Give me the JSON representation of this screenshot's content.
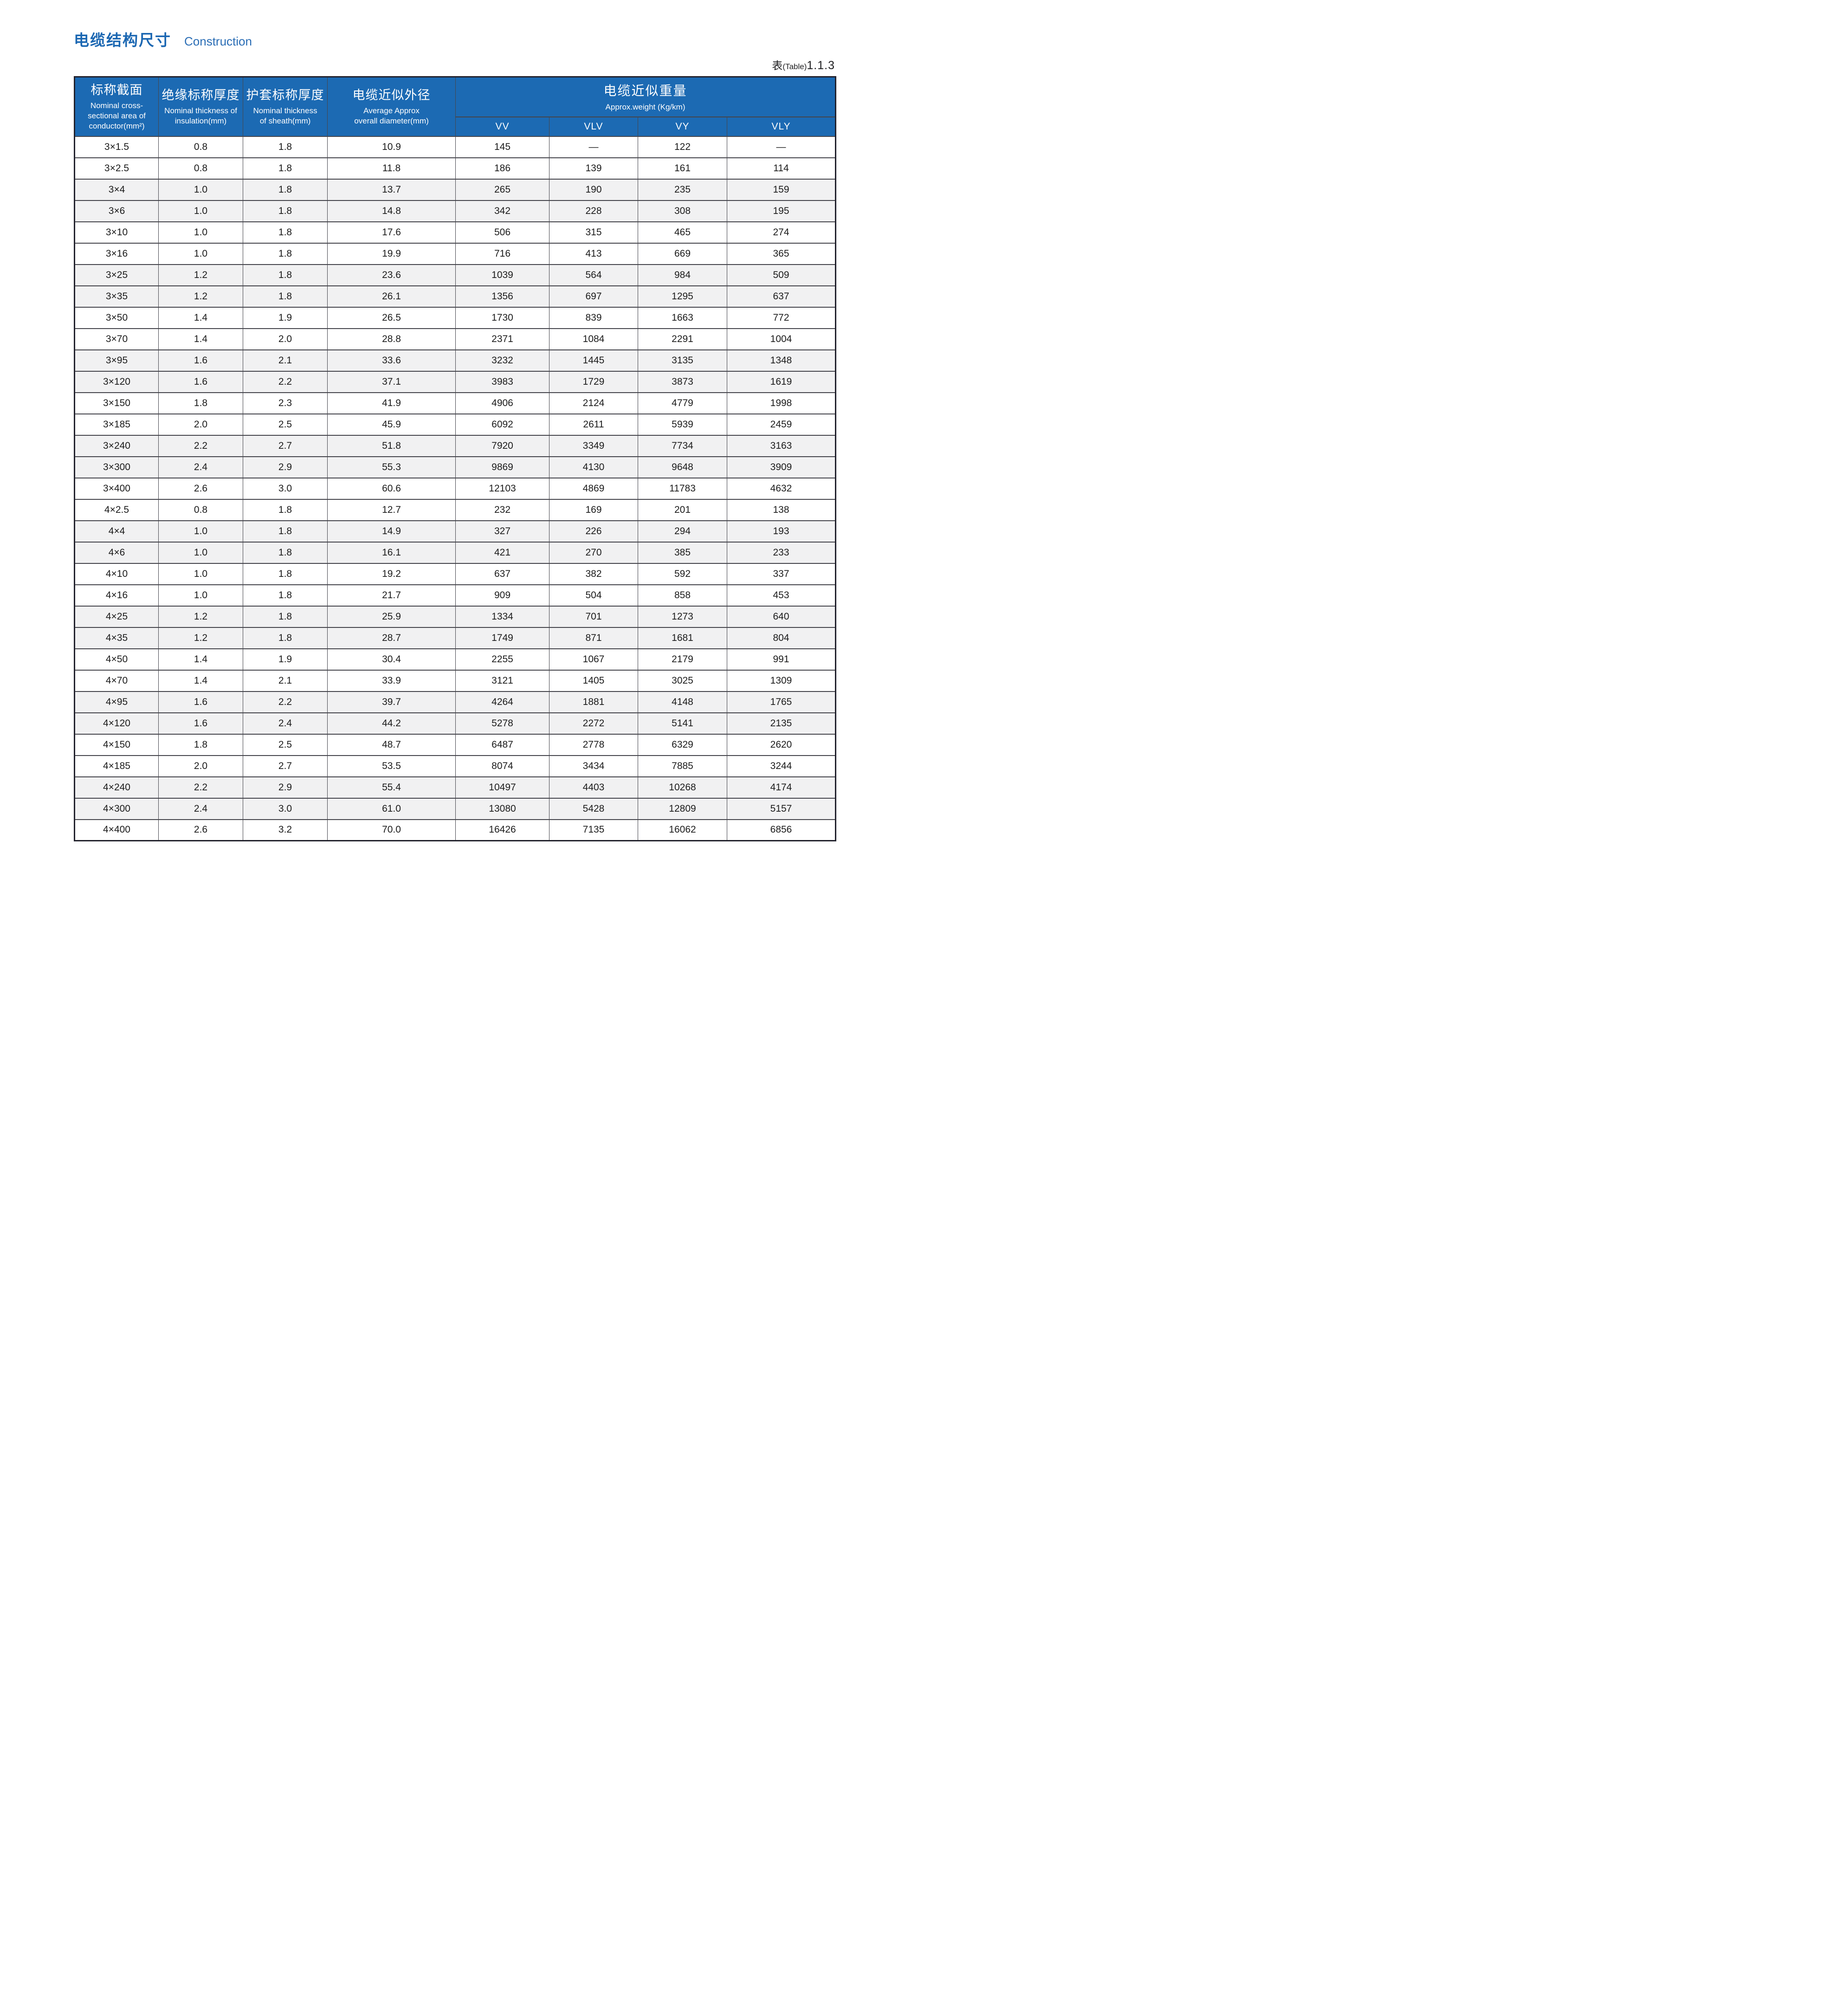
{
  "page": {
    "title_zh": "电缆结构尺寸",
    "title_en": "Construction",
    "table_ref": {
      "zh": "表",
      "mid": "(Table)",
      "num": "1.1.3"
    }
  },
  "colors": {
    "header_bg": "#1c6ab3",
    "title_blue": "#1b67b2",
    "alt_row_bg": "#f1f1f2",
    "grid_line": "#45454c",
    "outer_border": "#23232e",
    "body_text": "#1b1b1b"
  },
  "table": {
    "headers": {
      "col1_zh": "标称截面",
      "col1_en": "Nominal cross-\nsectional area of\nconductor(mm²)",
      "col2_zh": "绝缘标称厚度",
      "col2_en": "Nominal thickness of\ninsulation(mm)",
      "col3_zh": "护套标称厚度",
      "col3_en": "Nominal thickness\nof sheath(mm)",
      "col4_zh": "电缆近似外径",
      "col4_en": "Average Approx\noverall diameter(mm)",
      "weight_zh": "电缆近似重量",
      "weight_en": "Approx.weight (Kg/km)",
      "weight_cols": [
        "VV",
        "VLV",
        "VY",
        "VLY"
      ]
    },
    "rows": [
      [
        "3×1.5",
        "0.8",
        "1.8",
        "10.9",
        "145",
        "—",
        "122",
        "—"
      ],
      [
        "3×2.5",
        "0.8",
        "1.8",
        "11.8",
        "186",
        "139",
        "161",
        "114"
      ],
      [
        "3×4",
        "1.0",
        "1.8",
        "13.7",
        "265",
        "190",
        "235",
        "159"
      ],
      [
        "3×6",
        "1.0",
        "1.8",
        "14.8",
        "342",
        "228",
        "308",
        "195"
      ],
      [
        "3×10",
        "1.0",
        "1.8",
        "17.6",
        "506",
        "315",
        "465",
        "274"
      ],
      [
        "3×16",
        "1.0",
        "1.8",
        "19.9",
        "716",
        "413",
        "669",
        "365"
      ],
      [
        "3×25",
        "1.2",
        "1.8",
        "23.6",
        "1039",
        "564",
        "984",
        "509"
      ],
      [
        "3×35",
        "1.2",
        "1.8",
        "26.1",
        "1356",
        "697",
        "1295",
        "637"
      ],
      [
        "3×50",
        "1.4",
        "1.9",
        "26.5",
        "1730",
        "839",
        "1663",
        "772"
      ],
      [
        "3×70",
        "1.4",
        "2.0",
        "28.8",
        "2371",
        "1084",
        "2291",
        "1004"
      ],
      [
        "3×95",
        "1.6",
        "2.1",
        "33.6",
        "3232",
        "1445",
        "3135",
        "1348"
      ],
      [
        "3×120",
        "1.6",
        "2.2",
        "37.1",
        "3983",
        "1729",
        "3873",
        "1619"
      ],
      [
        "3×150",
        "1.8",
        "2.3",
        "41.9",
        "4906",
        "2124",
        "4779",
        "1998"
      ],
      [
        "3×185",
        "2.0",
        "2.5",
        "45.9",
        "6092",
        "2611",
        "5939",
        "2459"
      ],
      [
        "3×240",
        "2.2",
        "2.7",
        "51.8",
        "7920",
        "3349",
        "7734",
        "3163"
      ],
      [
        "3×300",
        "2.4",
        "2.9",
        "55.3",
        "9869",
        "4130",
        "9648",
        "3909"
      ],
      [
        "3×400",
        "2.6",
        "3.0",
        "60.6",
        "12103",
        "4869",
        "11783",
        "4632"
      ],
      [
        "4×2.5",
        "0.8",
        "1.8",
        "12.7",
        "232",
        "169",
        "201",
        "138"
      ],
      [
        "4×4",
        "1.0",
        "1.8",
        "14.9",
        "327",
        "226",
        "294",
        "193"
      ],
      [
        "4×6",
        "1.0",
        "1.8",
        "16.1",
        "421",
        "270",
        "385",
        "233"
      ],
      [
        "4×10",
        "1.0",
        "1.8",
        "19.2",
        "637",
        "382",
        "592",
        "337"
      ],
      [
        "4×16",
        "1.0",
        "1.8",
        "21.7",
        "909",
        "504",
        "858",
        "453"
      ],
      [
        "4×25",
        "1.2",
        "1.8",
        "25.9",
        "1334",
        "701",
        "1273",
        "640"
      ],
      [
        "4×35",
        "1.2",
        "1.8",
        "28.7",
        "1749",
        "871",
        "1681",
        "804"
      ],
      [
        "4×50",
        "1.4",
        "1.9",
        "30.4",
        "2255",
        "1067",
        "2179",
        "991"
      ],
      [
        "4×70",
        "1.4",
        "2.1",
        "33.9",
        "3121",
        "1405",
        "3025",
        "1309"
      ],
      [
        "4×95",
        "1.6",
        "2.2",
        "39.7",
        "4264",
        "1881",
        "4148",
        "1765"
      ],
      [
        "4×120",
        "1.6",
        "2.4",
        "44.2",
        "5278",
        "2272",
        "5141",
        "2135"
      ],
      [
        "4×150",
        "1.8",
        "2.5",
        "48.7",
        "6487",
        "2778",
        "6329",
        "2620"
      ],
      [
        "4×185",
        "2.0",
        "2.7",
        "53.5",
        "8074",
        "3434",
        "7885",
        "3244"
      ],
      [
        "4×240",
        "2.2",
        "2.9",
        "55.4",
        "10497",
        "4403",
        "10268",
        "4174"
      ],
      [
        "4×300",
        "2.4",
        "3.0",
        "61.0",
        "13080",
        "5428",
        "12809",
        "5157"
      ],
      [
        "4×400",
        "2.6",
        "3.2",
        "70.0",
        "16426",
        "7135",
        "16062",
        "6856"
      ]
    ]
  }
}
